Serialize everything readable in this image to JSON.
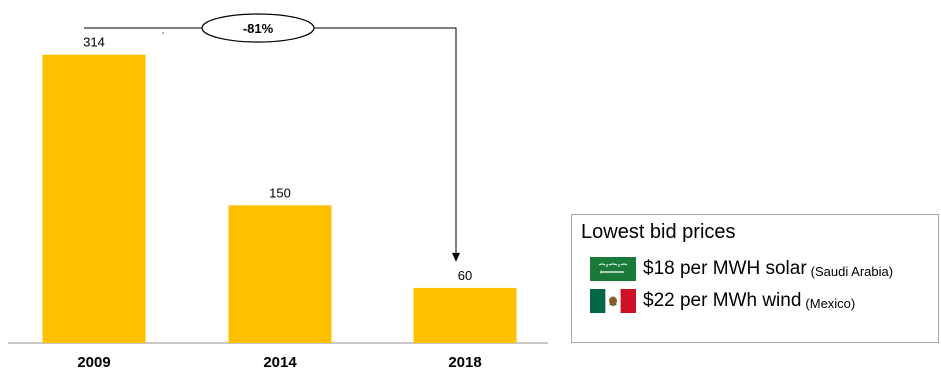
{
  "chart_data": {
    "type": "bar",
    "categories": [
      "2009",
      "2014",
      "2018"
    ],
    "values": [
      314,
      150,
      60
    ],
    "value_labels": [
      "314",
      "150",
      "60"
    ],
    "ylim": [
      0,
      330
    ],
    "bar_color": "#ffc000",
    "title": "",
    "xlabel": "",
    "ylabel": "",
    "annotation": {
      "text": "-81%",
      "from": "2009",
      "to": "2018"
    }
  },
  "legend": {
    "title": "Lowest bid prices",
    "items": [
      {
        "text": "$18 per MWH solar",
        "note": "(Saudi Arabia)",
        "flag_icon": "saudi-arabia-flag-icon"
      },
      {
        "text": "$22 per MWh wind",
        "note": "(Mexico)",
        "flag_icon": "mexico-flag-icon"
      }
    ]
  }
}
